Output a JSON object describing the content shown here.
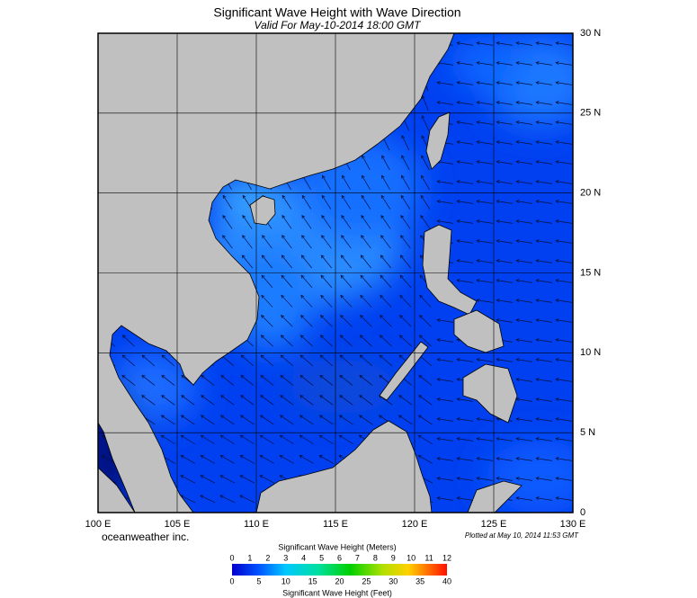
{
  "header": {
    "title": "Significant Wave Height with Wave Direction",
    "subtitle": "Valid For May-10-2014 18:00 GMT"
  },
  "map": {
    "lon_labels": [
      "100 E",
      "105 E",
      "110 E",
      "115 E",
      "120 E",
      "125 E",
      "130 E"
    ],
    "lat_labels": [
      "0",
      "5 N",
      "10 N",
      "15 N",
      "20 N",
      "25 N",
      "30 N"
    ]
  },
  "credit": "oceanweather inc.",
  "plotted": "Plotted at May 10, 2014 11:53 GMT",
  "legend": {
    "title_meters": "Significant Wave Height (Meters)",
    "meters_ticks": [
      0,
      1,
      2,
      3,
      4,
      5,
      6,
      7,
      8,
      9,
      10,
      11,
      12
    ],
    "title_feet": "Significant Wave Height (Feet)",
    "feet_ticks": [
      0,
      5,
      10,
      15,
      20,
      25,
      30,
      35,
      40
    ]
  }
}
